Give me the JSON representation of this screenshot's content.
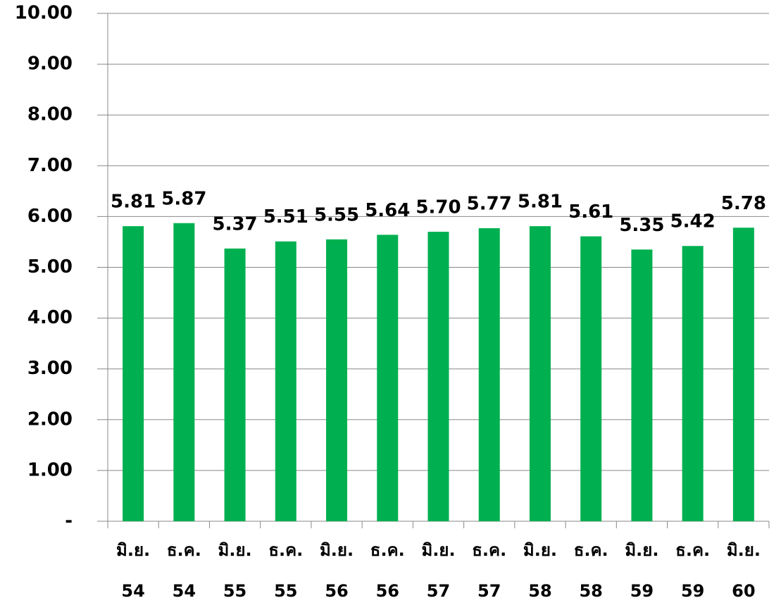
{
  "chart_data": {
    "type": "bar",
    "categories": [
      "มิ.ย. 54",
      "ธ.ค. 54",
      "มิ.ย. 55",
      "ธ.ค. 55",
      "มิ.ย. 56",
      "ธ.ค. 56",
      "มิ.ย. 57",
      "ธ.ค. 57",
      "มิ.ย. 58",
      "ธ.ค. 58",
      "มิ.ย. 59",
      "ธ.ค. 59",
      "มิ.ย. 60"
    ],
    "values": [
      5.81,
      5.87,
      5.37,
      5.51,
      5.55,
      5.64,
      5.7,
      5.77,
      5.81,
      5.61,
      5.35,
      5.42,
      5.78
    ],
    "value_labels": [
      "5.81",
      "5.87",
      "5.37",
      "5.51",
      "5.55",
      "5.64",
      "5.70",
      "5.77",
      "5.81",
      "5.61",
      "5.35",
      "5.42",
      "5.78"
    ],
    "color": "#00b050",
    "ylim": [
      0,
      10
    ],
    "yticks": [
      {
        "value": 0,
        "label": "-"
      },
      {
        "value": 1,
        "label": "1.00"
      },
      {
        "value": 2,
        "label": "2.00"
      },
      {
        "value": 3,
        "label": "3.00"
      },
      {
        "value": 4,
        "label": "4.00"
      },
      {
        "value": 5,
        "label": "5.00"
      },
      {
        "value": 6,
        "label": "6.00"
      },
      {
        "value": 7,
        "label": "7.00"
      },
      {
        "value": 8,
        "label": "8.00"
      },
      {
        "value": 9,
        "label": "9.00"
      },
      {
        "value": 10,
        "label": "10.00"
      }
    ],
    "grid": true
  }
}
